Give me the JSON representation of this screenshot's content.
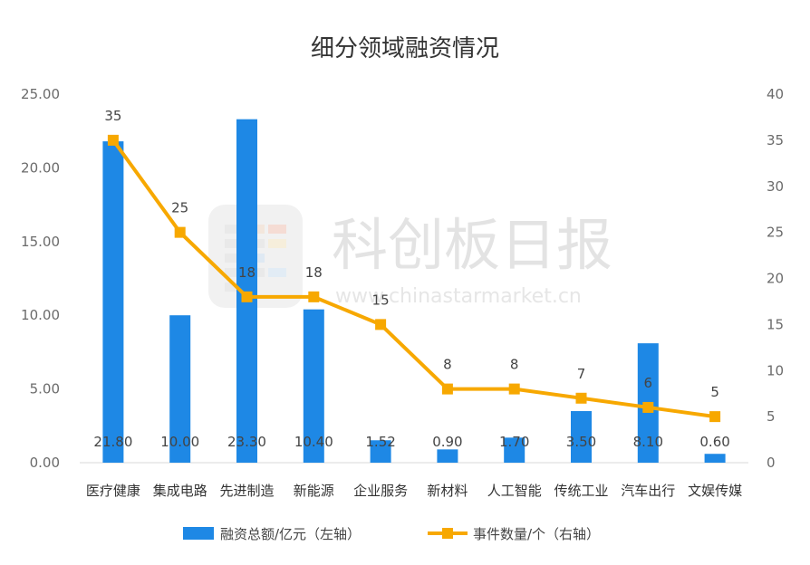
{
  "chart_data": {
    "type": "bar",
    "title": "细分领域融资情况",
    "categories": [
      "医疗健康",
      "集成电路",
      "先进制造",
      "新能源",
      "企业服务",
      "新材料",
      "人工智能",
      "传统工业",
      "汽车出行",
      "文娱传媒"
    ],
    "series": [
      {
        "name": "融资总额/亿元（左轴）",
        "type": "bar",
        "axis": "left",
        "values": [
          21.8,
          10.0,
          23.3,
          10.4,
          1.52,
          0.9,
          1.7,
          3.5,
          8.1,
          0.6
        ],
        "labels": [
          "21.80",
          "10.00",
          "23.30",
          "10.40",
          "1.52",
          "0.90",
          "1.70",
          "3.50",
          "8.10",
          "0.60"
        ]
      },
      {
        "name": "事件数量/个（右轴）",
        "type": "line",
        "axis": "right",
        "values": [
          35,
          25,
          18,
          18,
          15,
          8,
          8,
          7,
          6,
          5
        ],
        "labels": [
          "35",
          "25",
          "18",
          "18",
          "15",
          "8",
          "8",
          "7",
          "6",
          "5"
        ]
      }
    ],
    "y_left": {
      "lim": [
        0,
        25
      ],
      "ticks": [
        "0.00",
        "5.00",
        "10.00",
        "15.00",
        "20.00",
        "25.00"
      ]
    },
    "y_right": {
      "lim": [
        0,
        40
      ],
      "ticks": [
        "0",
        "5",
        "10",
        "15",
        "20",
        "25",
        "30",
        "35",
        "40"
      ]
    },
    "grid": false,
    "legend": "bottom",
    "colors": {
      "bar": "#1e88e5",
      "line": "#f7a800",
      "axis_text": "#6b6b6b"
    }
  },
  "watermark": {
    "text": "科创板日报",
    "url": "www.chinastarmarket.cn"
  }
}
